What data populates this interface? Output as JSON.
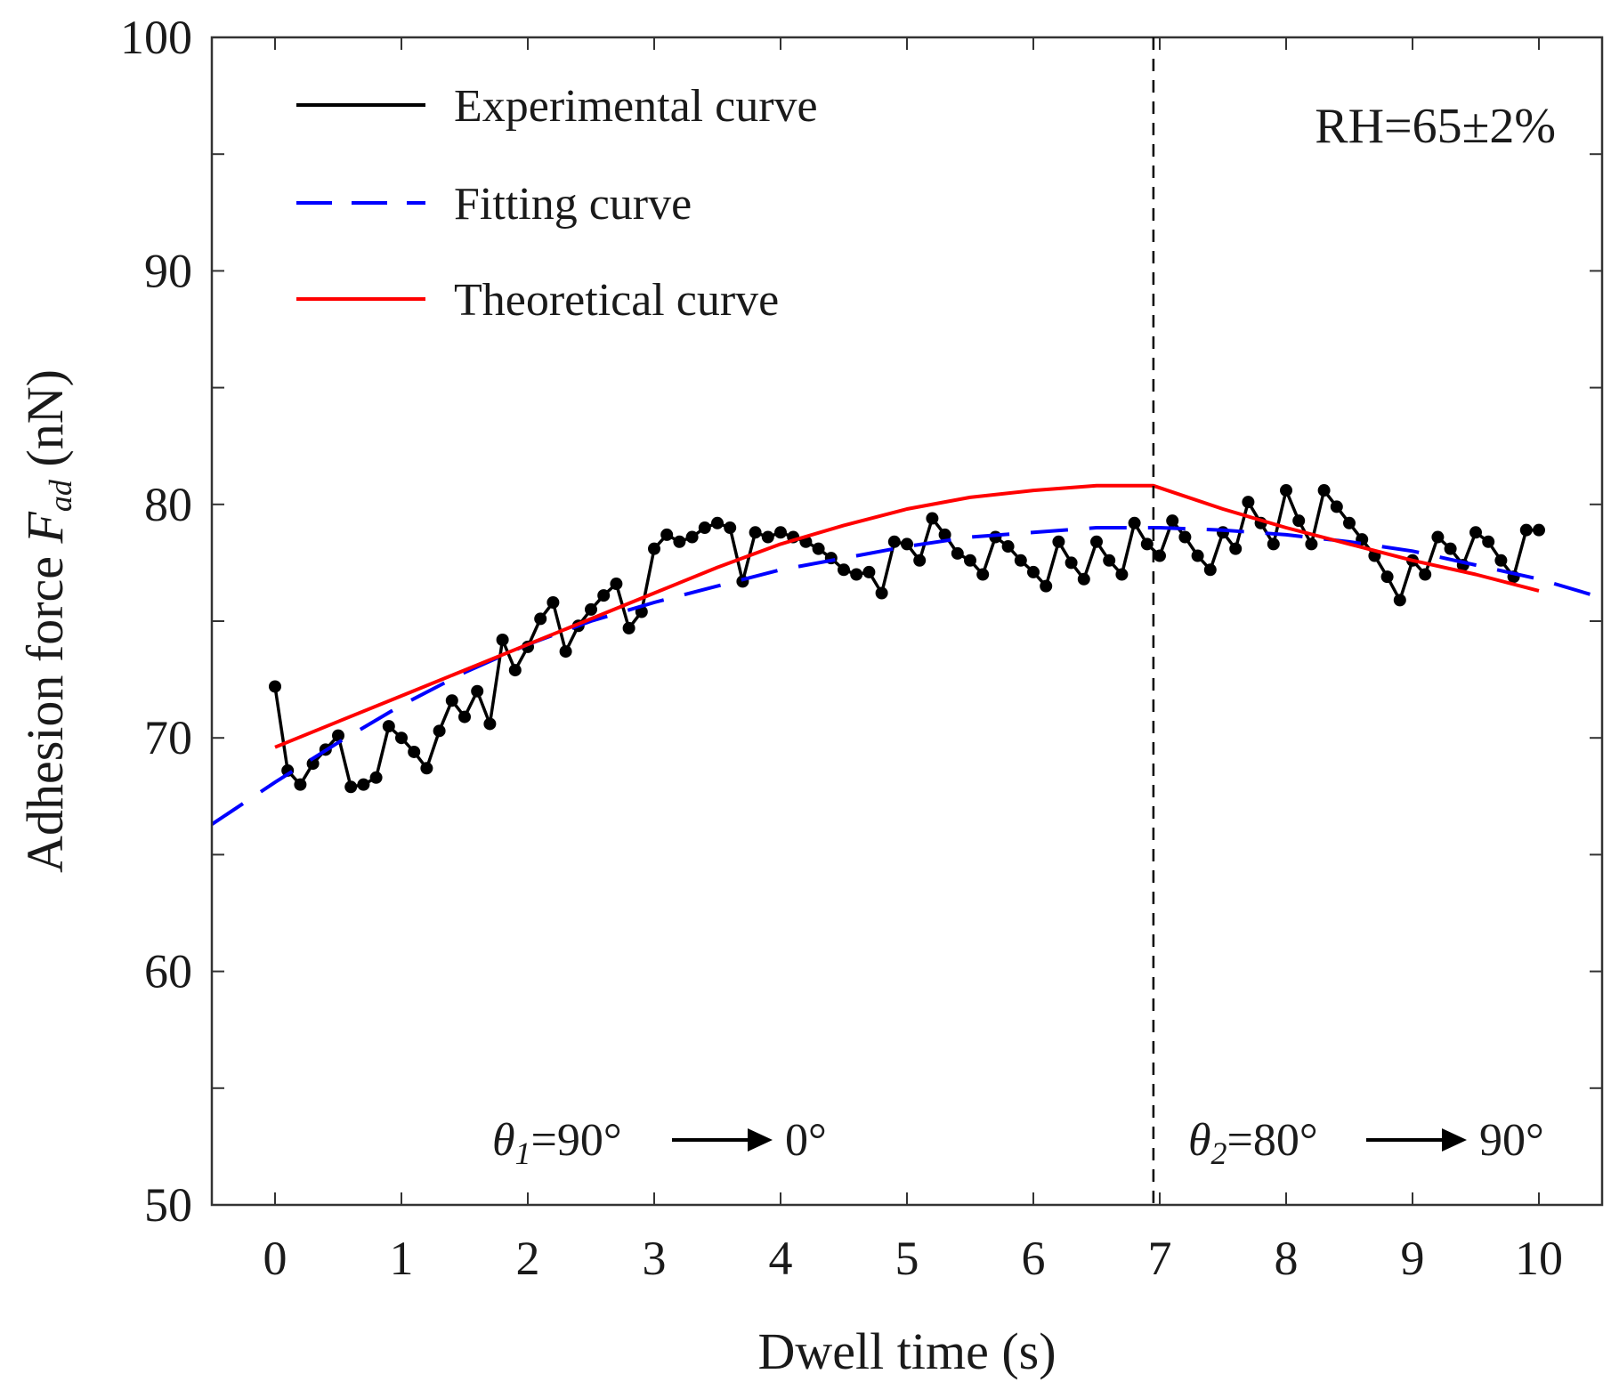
{
  "chart_data": {
    "type": "line",
    "title": "",
    "xlabel": "Dwell time (s)",
    "ylabel_main": "Adhesion force ",
    "ylabel_symbol": "F",
    "ylabel_sub": "ad",
    "ylabel_unit": " (nN)",
    "xlim": [
      -0.5,
      10.5
    ],
    "ylim": [
      50,
      100
    ],
    "x_ticks": [
      0,
      1,
      2,
      3,
      4,
      5,
      6,
      7,
      8,
      9,
      10
    ],
    "y_ticks": [
      50,
      60,
      70,
      80,
      90,
      100
    ],
    "grid": false,
    "legend": [
      {
        "name": "Experimental curve",
        "color": "#000000",
        "style": "solid"
      },
      {
        "name": "Fitting curve",
        "color": "#0000ff",
        "style": "dashed"
      },
      {
        "name": "Theoretical curve",
        "color": "#ff0000",
        "style": "solid"
      }
    ],
    "legend_position": "top-left",
    "rh_label": "RH=65±2%",
    "divider_x": 6.95,
    "annotations": [
      {
        "theta": "θ",
        "sub": "1",
        "from": "=90°",
        "to": "0°",
        "x_range": [
          1.7,
          5.1
        ]
      },
      {
        "theta": "θ",
        "sub": "2",
        "from": "=80°",
        "to": "90°",
        "x_range": [
          7.2,
          10.0
        ]
      }
    ],
    "series": [
      {
        "name": "Experimental curve",
        "color": "#000000",
        "x": [
          0,
          0.1,
          0.2,
          0.3,
          0.4,
          0.5,
          0.6,
          0.7,
          0.8,
          0.9,
          1.0,
          1.1,
          1.2,
          1.3,
          1.4,
          1.5,
          1.6,
          1.7,
          1.8,
          1.9,
          2.0,
          2.1,
          2.2,
          2.3,
          2.4,
          2.5,
          2.6,
          2.7,
          2.8,
          2.9,
          3.0,
          3.1,
          3.2,
          3.3,
          3.4,
          3.5,
          3.6,
          3.7,
          3.8,
          3.9,
          4.0,
          4.1,
          4.2,
          4.3,
          4.4,
          4.5,
          4.6,
          4.7,
          4.8,
          4.9,
          5.0,
          5.1,
          5.2,
          5.3,
          5.4,
          5.5,
          5.6,
          5.7,
          5.8,
          5.9,
          6.0,
          6.1,
          6.2,
          6.3,
          6.4,
          6.5,
          6.6,
          6.7,
          6.8,
          6.9,
          7.0,
          7.1,
          7.2,
          7.3,
          7.4,
          7.5,
          7.6,
          7.7,
          7.8,
          7.9,
          8.0,
          8.1,
          8.2,
          8.3,
          8.4,
          8.5,
          8.6,
          8.7,
          8.8,
          8.9,
          9.0,
          9.1,
          9.2,
          9.3,
          9.4,
          9.5,
          9.6,
          9.7,
          9.8,
          9.9,
          10.0
        ],
        "y": [
          72.2,
          68.6,
          68.0,
          68.9,
          69.5,
          70.1,
          67.9,
          68.0,
          68.3,
          70.5,
          70.0,
          69.4,
          68.7,
          70.3,
          71.6,
          70.9,
          72.0,
          70.6,
          74.2,
          72.9,
          73.9,
          75.1,
          75.8,
          73.7,
          74.8,
          75.5,
          76.1,
          76.6,
          74.7,
          75.4,
          78.1,
          78.7,
          78.4,
          78.6,
          79.0,
          79.2,
          79.0,
          76.7,
          78.8,
          78.6,
          78.8,
          78.6,
          78.4,
          78.1,
          77.7,
          77.2,
          77.0,
          77.1,
          76.2,
          78.4,
          78.3,
          77.6,
          79.4,
          78.7,
          77.9,
          77.6,
          77.0,
          78.6,
          78.2,
          77.6,
          77.1,
          76.5,
          78.4,
          77.5,
          76.8,
          78.4,
          77.6,
          77.0,
          79.2,
          78.3,
          77.8,
          79.3,
          78.6,
          77.8,
          77.2,
          78.8,
          78.1,
          80.1,
          79.2,
          78.3,
          80.6,
          79.3,
          78.3,
          80.6,
          79.9,
          79.2,
          78.5,
          77.8,
          76.9,
          75.9,
          77.6,
          77.0,
          78.6,
          78.1,
          77.4,
          78.8,
          78.4,
          77.6,
          76.9,
          78.9,
          78.9
        ]
      },
      {
        "name": "Fitting curve",
        "color": "#0000ff",
        "x": [
          -0.5,
          0,
          0.5,
          1,
          1.5,
          2,
          2.5,
          3,
          3.5,
          4,
          4.5,
          5,
          5.5,
          6,
          6.5,
          7,
          7.5,
          8,
          8.5,
          9,
          9.5,
          10,
          10.5
        ],
        "y": [
          66.3,
          68.1,
          69.8,
          71.4,
          72.8,
          74.0,
          75.0,
          75.8,
          76.5,
          77.2,
          77.7,
          78.2,
          78.6,
          78.8,
          79.0,
          79.0,
          78.9,
          78.7,
          78.4,
          78.0,
          77.4,
          76.8,
          76.0
        ]
      },
      {
        "name": "Theoretical curve",
        "color": "#ff0000",
        "x": [
          0,
          0.5,
          1,
          1.5,
          2,
          2.5,
          3,
          3.5,
          4,
          4.5,
          5,
          5.5,
          6,
          6.5,
          6.95,
          7.5,
          8,
          8.5,
          9,
          9.5,
          10
        ],
        "y": [
          69.6,
          70.7,
          71.8,
          72.9,
          74.0,
          75.1,
          76.2,
          77.3,
          78.3,
          79.1,
          79.8,
          80.3,
          80.6,
          80.8,
          80.8,
          79.8,
          79.0,
          78.3,
          77.6,
          77.0,
          76.3
        ]
      }
    ]
  }
}
